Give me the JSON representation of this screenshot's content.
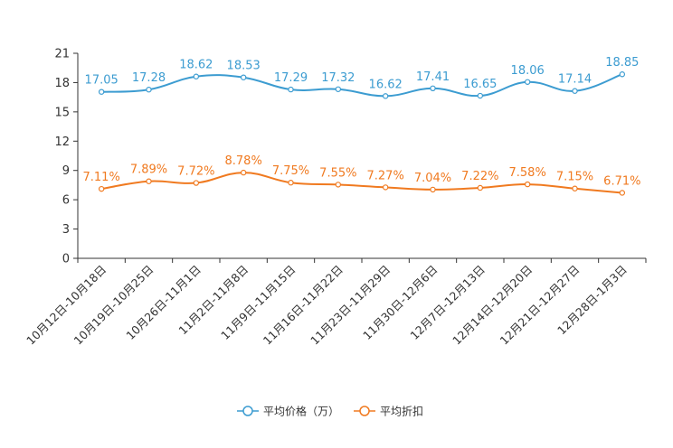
{
  "chart_data": {
    "type": "line",
    "title": "",
    "xlabel": "",
    "ylabel": "",
    "ylim": [
      0,
      21
    ],
    "yticks": [
      0,
      3,
      6,
      9,
      12,
      15,
      18,
      21
    ],
    "grid": false,
    "legend_position": "bottom",
    "categories": [
      "10月12日-10月18日",
      "10月19日-10月25日",
      "10月26日-11月1日",
      "11月2日-11月8日",
      "11月9日-11月15日",
      "11月16日-11月22日",
      "11月23日-11月29日",
      "11月30日-12月6日",
      "12月7日-12月13日",
      "12月14日-12月20日",
      "12月21日-12月27日",
      "12月28日-1月3日"
    ],
    "series": [
      {
        "name": "平均价格（万）",
        "color": "#3c9cd1",
        "values": [
          17.05,
          17.28,
          18.62,
          18.53,
          17.29,
          17.32,
          16.62,
          17.41,
          16.65,
          18.06,
          17.14,
          18.85
        ],
        "labels": [
          "17.05",
          "17.28",
          "18.62",
          "18.53",
          "17.29",
          "17.32",
          "16.62",
          "17.41",
          "16.65",
          "18.06",
          "17.14",
          "18.85"
        ]
      },
      {
        "name": "平均折扣",
        "color": "#f07a20",
        "values": [
          7.11,
          7.89,
          7.72,
          8.78,
          7.75,
          7.55,
          7.27,
          7.04,
          7.22,
          7.58,
          7.15,
          6.71
        ],
        "labels": [
          "7.11%",
          "7.89%",
          "7.72%",
          "8.78%",
          "7.75%",
          "7.55%",
          "7.27%",
          "7.04%",
          "7.22%",
          "7.58%",
          "7.15%",
          "6.71%"
        ]
      }
    ]
  }
}
